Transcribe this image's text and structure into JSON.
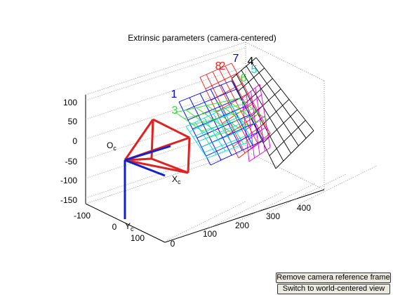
{
  "figure": {
    "title": "Extrinsic parameters (camera-centered)",
    "axes": {
      "z_ticks": [
        "100",
        "50",
        "0",
        "-50",
        "-100",
        "-150"
      ],
      "x_ticks": [
        "-100",
        "0",
        "100"
      ],
      "y_ticks": [
        "0",
        "100",
        "200",
        "300",
        "400"
      ]
    },
    "camera_labels": [
      {
        "main": "O",
        "sub": "c"
      },
      {
        "main": "X",
        "sub": "c"
      },
      {
        "main": "Y",
        "sub": "c"
      }
    ],
    "grid_labels": [
      {
        "text": "1",
        "color": "#0000ff"
      },
      {
        "text": "3",
        "color": "#33dd33"
      },
      {
        "text": "8",
        "color": "#ee2222"
      },
      {
        "text": "2",
        "color": "#ee2222"
      },
      {
        "text": "6",
        "color": "#33dd33"
      },
      {
        "text": "7",
        "color": "#0000cc"
      },
      {
        "text": "4",
        "color": "#000000"
      },
      {
        "text": "5",
        "color": "#00dddd"
      }
    ],
    "buttons": [
      "Remove camera reference frame",
      "Switch to world-centered view"
    ]
  }
}
